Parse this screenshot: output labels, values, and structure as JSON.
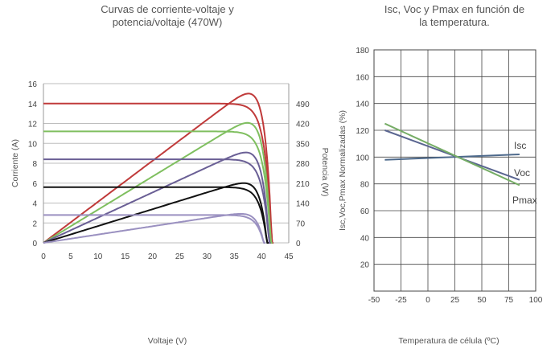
{
  "chart_data": [
    {
      "type": "line",
      "title_lines": [
        "Curvas de corriente-voltaje y",
        "potencia/voltaje (470W)"
      ],
      "xlabel": "Voltaje (V)",
      "ylabel": "Corriente (A)",
      "y2label": "Potencia (W)",
      "xlim": [
        0,
        45
      ],
      "ylim": [
        0,
        16
      ],
      "y2lim": [
        0,
        560
      ],
      "x_ticks": [
        "0",
        "5",
        "10",
        "15",
        "20",
        "25",
        "30",
        "35",
        "40",
        "45"
      ],
      "y_ticks": [
        "0",
        "2",
        "4",
        "6",
        "8",
        "10",
        "12",
        "14",
        "16"
      ],
      "y2_ticks": [
        "0",
        "70",
        "140",
        "210",
        "280",
        "350",
        "420",
        "490"
      ],
      "series": [
        {
          "color": "#c03a3a",
          "isc": 14.0,
          "voc": 42.2,
          "pmax": 525
        },
        {
          "color": "#7fbf5f",
          "isc": 11.2,
          "voc": 42.0,
          "pmax": 422
        },
        {
          "color": "#6a5f95",
          "isc": 8.4,
          "voc": 41.7,
          "pmax": 318
        },
        {
          "color": "#111111",
          "isc": 5.6,
          "voc": 41.3,
          "pmax": 210
        },
        {
          "color": "#9a90c0",
          "isc": 2.8,
          "voc": 40.7,
          "pmax": 102
        }
      ]
    },
    {
      "type": "line",
      "title_lines": [
        "Isc, Voc y Pmax en función de",
        "la temperatura."
      ],
      "xlabel": "Temperatura de célula (ºC)",
      "ylabel": "Isc,Voc,Pmax Normalizadas (%)",
      "xlim": [
        -50,
        100
      ],
      "ylim": [
        0,
        180
      ],
      "x_ticks": [
        "-50",
        "-25",
        "0",
        "25",
        "50",
        "75",
        "100"
      ],
      "y_ticks": [
        "20",
        "40",
        "60",
        "80",
        "100",
        "120",
        "140",
        "160",
        "180"
      ],
      "series": [
        {
          "name": "Isc",
          "color": "#4e6a8c",
          "x": [
            -40,
            85
          ],
          "y": [
            98,
            102
          ]
        },
        {
          "name": "Voc",
          "color": "#5a6590",
          "x": [
            -40,
            85
          ],
          "y": [
            120,
            83
          ]
        },
        {
          "name": "Pmax",
          "color": "#76ad66",
          "x": [
            -40,
            85
          ],
          "y": [
            125,
            79
          ]
        }
      ]
    }
  ]
}
